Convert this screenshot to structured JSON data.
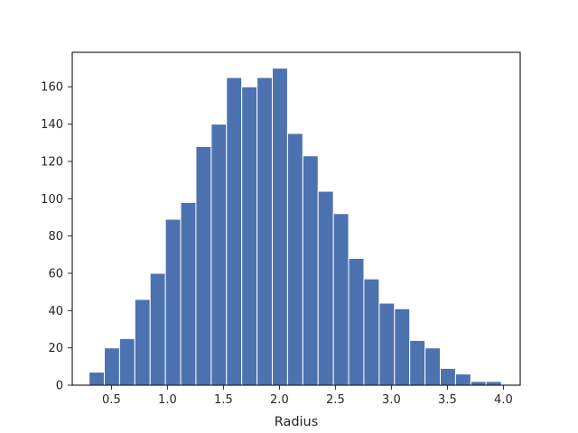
{
  "chart_data": {
    "type": "bar",
    "subtype": "histogram",
    "title": "",
    "xlabel": "Radius",
    "ylabel": "",
    "bar_color": "#4c72b0",
    "bar_edge_color": "#ffffff",
    "frame_color": "#262626",
    "grid": false,
    "xlim": [
      0.15,
      4.15
    ],
    "ylim": [
      0,
      178.5
    ],
    "xticks": [
      0.5,
      1.0,
      1.5,
      2.0,
      2.5,
      3.0,
      3.5,
      4.0
    ],
    "xtick_labels": [
      "0.5",
      "1.0",
      "1.5",
      "2.0",
      "2.5",
      "3.0",
      "3.5",
      "4.0"
    ],
    "yticks": [
      0,
      20,
      40,
      60,
      80,
      100,
      120,
      140,
      160
    ],
    "ytick_labels": [
      "0",
      "20",
      "40",
      "60",
      "80",
      "100",
      "120",
      "140",
      "160"
    ],
    "bin_edges": [
      0.3,
      0.4364,
      0.5727,
      0.7091,
      0.8455,
      0.9818,
      1.1182,
      1.2545,
      1.3909,
      1.5273,
      1.6636,
      1.8,
      1.9364,
      2.0727,
      2.2091,
      2.3455,
      2.4818,
      2.6182,
      2.7545,
      2.8909,
      3.0273,
      3.1636,
      3.3,
      3.4364,
      3.5727,
      3.7091,
      3.8455,
      3.9818
    ],
    "values": [
      7,
      20,
      25,
      46,
      60,
      89,
      98,
      128,
      140,
      165,
      160,
      165,
      170,
      135,
      123,
      104,
      92,
      68,
      57,
      44,
      41,
      24,
      20,
      9,
      6,
      2,
      2
    ]
  }
}
